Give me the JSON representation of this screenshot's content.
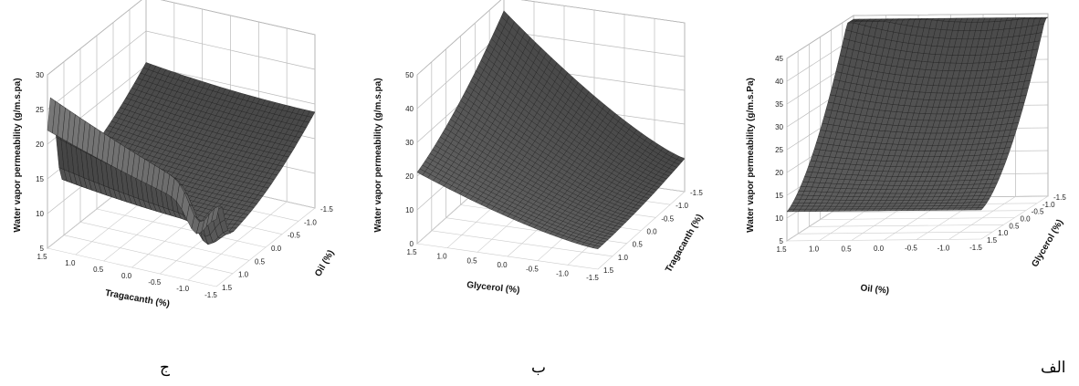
{
  "chart_data": [
    {
      "type": "surface3d",
      "caption": "ج",
      "zlabel": "Water vapor permeability (g/m.s.pa)",
      "xlabel": "Tragacanth (%)",
      "ylabel": "Oil (%)",
      "x_ticks": [
        "1.5",
        "1.0",
        "0.5",
        "0.0",
        "-0.5",
        "-1.0",
        "-1.5"
      ],
      "y_ticks": [
        "-1.5",
        "-1.0",
        "-0.5",
        "0.0",
        "0.5",
        "1.0",
        "1.5"
      ],
      "z_ticks": [
        "5",
        "10",
        "15",
        "20",
        "25",
        "30"
      ],
      "zlim": [
        5,
        30
      ]
    },
    {
      "type": "surface3d",
      "caption": "ب",
      "zlabel": "Water vapor permeability (g/m.s.pa)",
      "xlabel": "Glycerol (%)",
      "ylabel": "Tragacanth (%)",
      "x_ticks": [
        "1.5",
        "1.0",
        "0.5",
        "0.0",
        "-0.5",
        "-1.0",
        "-1.5"
      ],
      "y_ticks": [
        "-1.5",
        "-1.0",
        "-0.5",
        "0.0",
        "0.5",
        "1.0",
        "1.5"
      ],
      "z_ticks": [
        "0",
        "10",
        "20",
        "30",
        "40",
        "50"
      ],
      "zlim": [
        0,
        50
      ]
    },
    {
      "type": "surface3d",
      "caption": "الف",
      "zlabel": "Water vapor permeability (g/m.s.Pa)",
      "xlabel": "Oil (%)",
      "ylabel": "Glycerol (%)",
      "x_ticks": [
        "1.5",
        "1.0",
        "0.5",
        "0.0",
        "-0.5",
        "-1.0",
        "-1.5"
      ],
      "y_ticks": [
        "-1.5",
        "-1.0",
        "-0.5",
        "0.0",
        "0.5",
        "1.0",
        "1.5"
      ],
      "z_ticks": [
        "5",
        "10",
        "15",
        "20",
        "25",
        "30",
        "35",
        "40",
        "45"
      ],
      "zlim": [
        5,
        45
      ]
    }
  ]
}
